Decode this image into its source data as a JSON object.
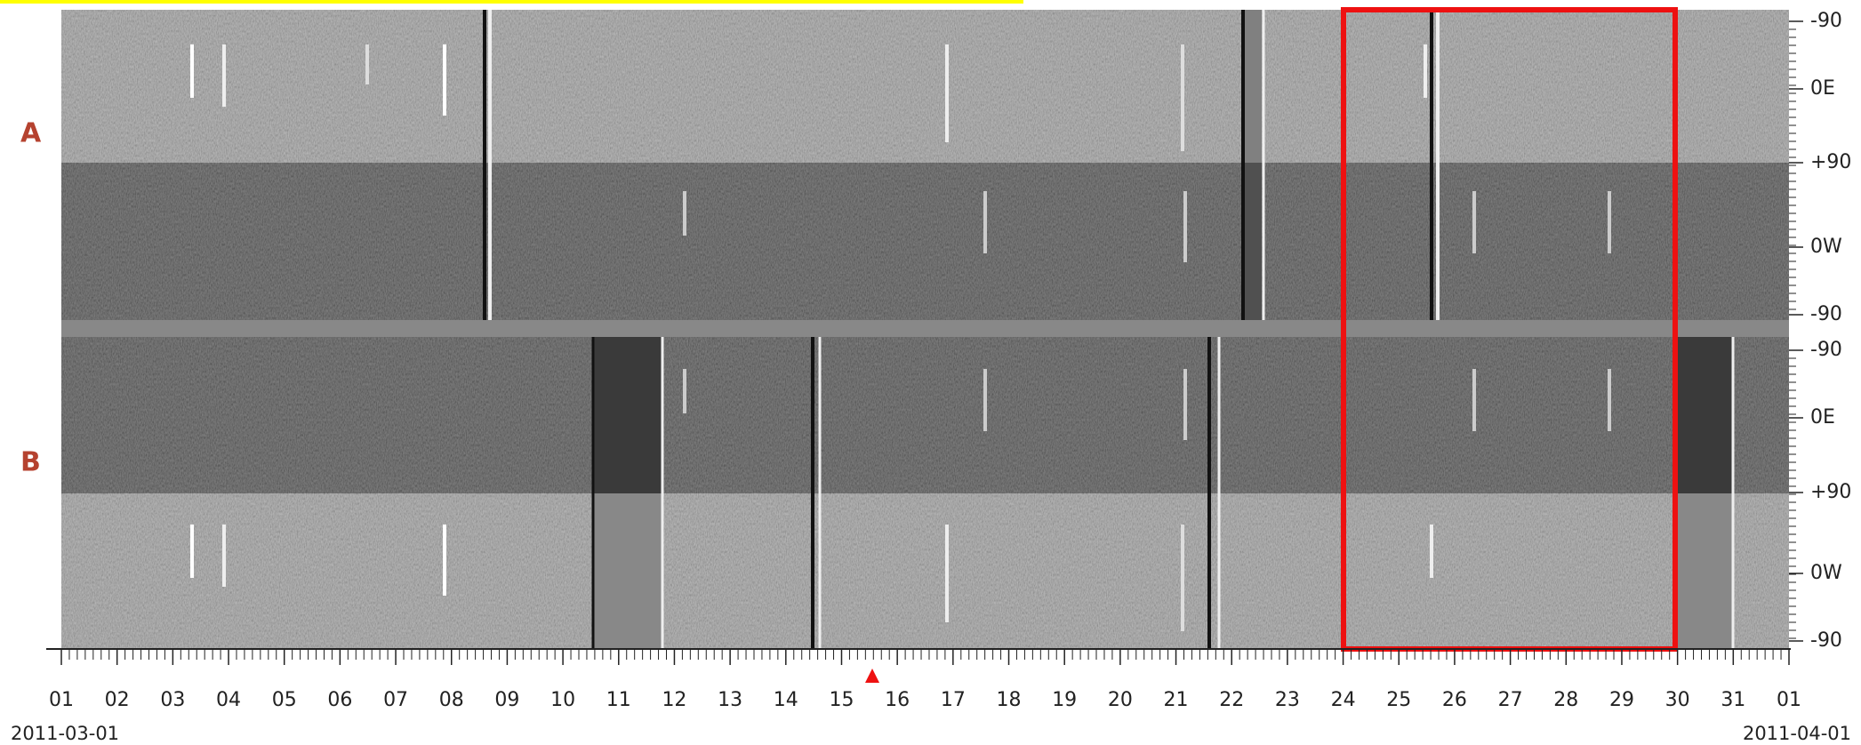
{
  "panels": [
    {
      "label": "A",
      "y_labels": [
        "-90",
        "0E",
        "+90",
        "0W",
        "-90"
      ]
    },
    {
      "label": "B",
      "y_labels": [
        "-90",
        "0E",
        "+90",
        "0W",
        "-90"
      ]
    }
  ],
  "x_axis": {
    "day_labels": [
      "01",
      "02",
      "03",
      "04",
      "05",
      "06",
      "07",
      "08",
      "09",
      "10",
      "11",
      "12",
      "13",
      "14",
      "15",
      "16",
      "17",
      "18",
      "19",
      "20",
      "21",
      "22",
      "23",
      "24",
      "25",
      "26",
      "27",
      "28",
      "29",
      "30",
      "31",
      "01"
    ],
    "start_date": "2011-03-01",
    "end_date": "2011-04-01"
  }
}
